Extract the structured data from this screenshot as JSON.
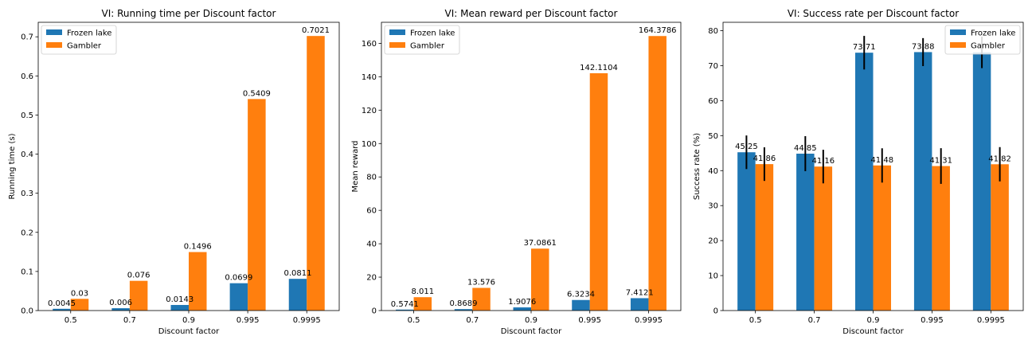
{
  "chart_data": [
    {
      "type": "bar",
      "title": "VI: Running time per Discount factor",
      "xlabel": "Discount factor",
      "ylabel": "Running time (s)",
      "categories": [
        "0.5",
        "0.7",
        "0.9",
        "0.995",
        "0.9995"
      ],
      "ylim": [
        0,
        0.7371
      ],
      "yticks": [
        "0.0",
        "0.1",
        "0.2",
        "0.3",
        "0.4",
        "0.5",
        "0.6",
        "0.7"
      ],
      "legend": "upper left",
      "series": [
        {
          "name": "Frozen lake",
          "color": "#1f77b4",
          "values": [
            0.0045,
            0.006,
            0.0143,
            0.0699,
            0.0811
          ],
          "labels": [
            "0.0045",
            "0.006",
            "0.0143",
            "0.0699",
            "0.0811"
          ]
        },
        {
          "name": "Gambler",
          "color": "#ff7f0e",
          "values": [
            0.03,
            0.076,
            0.1496,
            0.5409,
            0.7021
          ],
          "labels": [
            "0.03",
            "0.076",
            "0.1496",
            "0.5409",
            "0.7021"
          ]
        }
      ]
    },
    {
      "type": "bar",
      "title": "VI: Mean reward per Discount factor",
      "xlabel": "Discount factor",
      "ylabel": "Mean reward",
      "categories": [
        "0.5",
        "0.7",
        "0.9",
        "0.995",
        "0.9995"
      ],
      "ylim": [
        0,
        172.6
      ],
      "yticks": [
        "0",
        "20",
        "40",
        "60",
        "80",
        "100",
        "120",
        "140",
        "160"
      ],
      "legend": "upper left",
      "series": [
        {
          "name": "Frozen lake",
          "color": "#1f77b4",
          "values": [
            0.5741,
            0.8689,
            1.9076,
            6.3234,
            7.4121
          ],
          "labels": [
            "0.5741",
            "0.8689",
            "1.9076",
            "6.3234",
            "7.4121"
          ]
        },
        {
          "name": "Gambler",
          "color": "#ff7f0e",
          "values": [
            8.011,
            13.576,
            37.0861,
            142.1104,
            164.3786
          ],
          "labels": [
            "8.011",
            "13.576",
            "37.0861",
            "142.1104",
            "164.3786"
          ]
        }
      ]
    },
    {
      "type": "bar",
      "title": "VI: Success rate per Discount factor",
      "xlabel": "Discount factor",
      "ylabel": "Success rate (%)",
      "categories": [
        "0.5",
        "0.7",
        "0.9",
        "0.995",
        "0.9995"
      ],
      "ylim": [
        0,
        82.4
      ],
      "yticks": [
        "0",
        "10",
        "20",
        "30",
        "40",
        "50",
        "60",
        "70",
        "80"
      ],
      "legend": "upper right",
      "series": [
        {
          "name": "Frozen lake",
          "color": "#1f77b4",
          "values": [
            45.25,
            44.85,
            73.71,
            73.88,
            73.8
          ],
          "labels": [
            "45.25",
            "44.85",
            "73.71",
            "73.88",
            ""
          ],
          "errors": [
            4.8,
            5.0,
            4.8,
            4.0,
            4.5
          ]
        },
        {
          "name": "Gambler",
          "color": "#ff7f0e",
          "values": [
            41.86,
            41.16,
            41.48,
            41.31,
            41.82
          ],
          "labels": [
            "41.86",
            "41.16",
            "41.48",
            "41.31",
            "41.82"
          ],
          "errors": [
            4.8,
            4.8,
            4.9,
            5.1,
            4.9
          ]
        }
      ]
    }
  ]
}
